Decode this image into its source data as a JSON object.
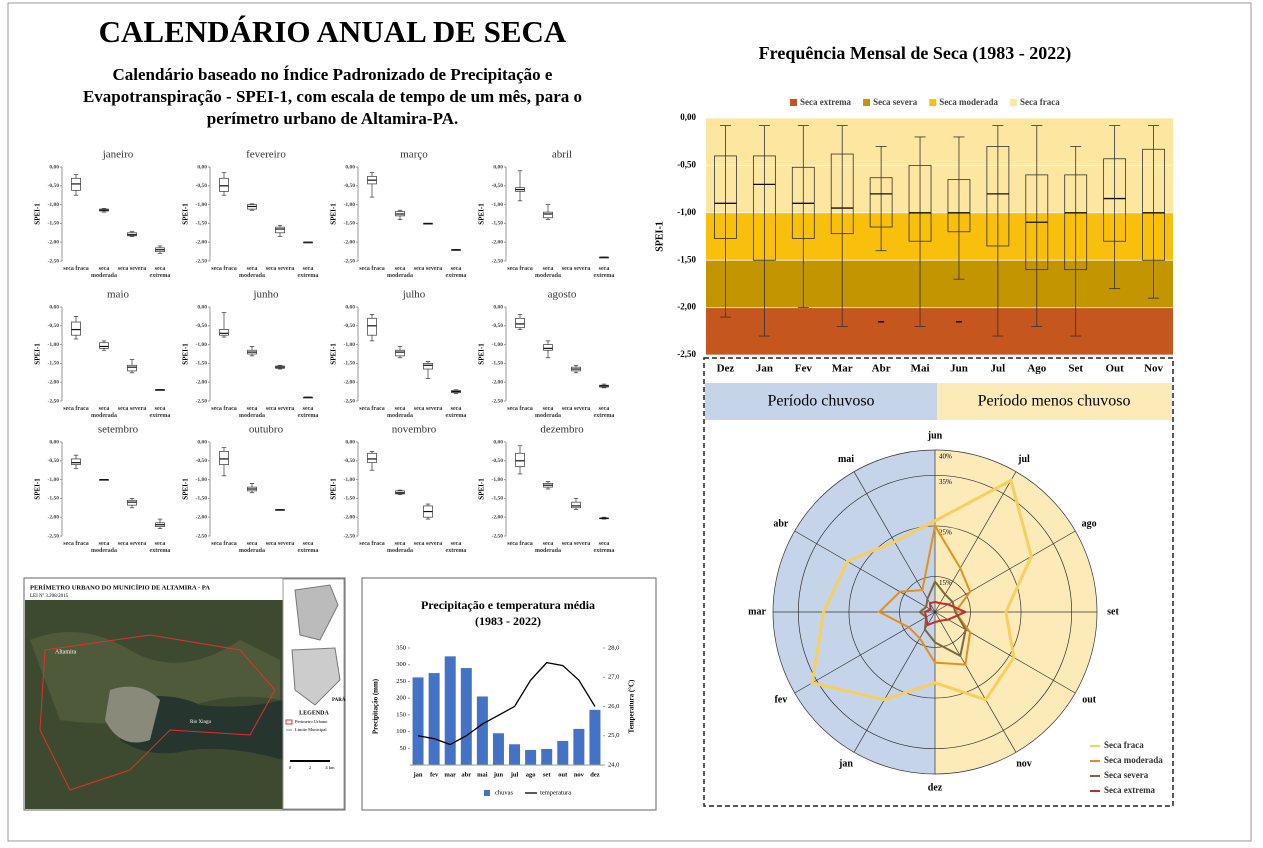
{
  "header": {
    "title": "CALENDÁRIO ANUAL DE SECA",
    "subtitle": "Calendário baseado no Índice Padronizado de Precipitação e Evapotranspiração - SPEI-1, com escala de tempo de um mês, para o perímetro urbano de Altamira-PA."
  },
  "chart_data": [
    {
      "type": "box",
      "ylabel": "SPEI-1",
      "ylim": [
        -2.5,
        0
      ],
      "yticks": [
        {
          "value": 0,
          "label": "0,00"
        },
        {
          "value": -0.5,
          "label": "-0,50"
        },
        {
          "value": -1,
          "label": "-1,00"
        },
        {
          "value": -1.5,
          "label": "-1,50"
        },
        {
          "value": -2,
          "label": "-2,00"
        },
        {
          "value": -2.5,
          "label": "-2,50"
        }
      ],
      "categories": [
        "seca fraca",
        "seca moderada",
        "seca severa",
        "seca extrema"
      ],
      "panels": [
        {
          "title": "janeiro",
          "boxes": [
            [
              -0.75,
              -0.62,
              -0.45,
              -0.3,
              -0.2
            ],
            [
              -1.2,
              -1.17,
              -1.15,
              -1.12,
              -1.1
            ],
            [
              -1.85,
              -1.83,
              -1.8,
              -1.75,
              -1.72
            ],
            [
              -2.3,
              -2.25,
              -2.2,
              -2.15,
              -2.1
            ]
          ]
        },
        {
          "title": "fevereiro",
          "boxes": [
            [
              -0.75,
              -0.65,
              -0.5,
              -0.3,
              -0.15
            ],
            [
              -1.15,
              -1.12,
              -1.05,
              -1.0,
              -0.98
            ],
            [
              -1.85,
              -1.75,
              -1.65,
              -1.6,
              -1.55
            ],
            [
              -2.0,
              -2.0,
              -2.0,
              -2.0,
              -2.0
            ]
          ]
        },
        {
          "title": "março",
          "boxes": [
            [
              -0.8,
              -0.45,
              -0.35,
              -0.25,
              -0.15
            ],
            [
              -1.4,
              -1.3,
              -1.25,
              -1.18,
              -1.15
            ],
            [
              -1.5,
              -1.5,
              -1.5,
              -1.5,
              -1.5
            ],
            [
              -2.2,
              -2.2,
              -2.2,
              -2.2,
              -2.2
            ]
          ]
        },
        {
          "title": "abril",
          "boxes": [
            [
              -0.9,
              -0.65,
              -0.6,
              -0.55,
              -0.1
            ],
            [
              -1.4,
              -1.35,
              -1.25,
              -1.2,
              -1.0
            ],
            null,
            [
              -2.4,
              -2.4,
              -2.4,
              -2.4,
              -2.4
            ]
          ]
        },
        {
          "title": "maio",
          "boxes": [
            [
              -0.85,
              -0.75,
              -0.6,
              -0.4,
              -0.25
            ],
            [
              -1.15,
              -1.1,
              -1.05,
              -0.95,
              -0.9
            ],
            [
              -1.75,
              -1.7,
              -1.6,
              -1.55,
              -1.4
            ],
            [
              -2.2,
              -2.2,
              -2.2,
              -2.2,
              -2.2
            ]
          ]
        },
        {
          "title": "junho",
          "boxes": [
            [
              -0.8,
              -0.75,
              -0.7,
              -0.6,
              -0.15
            ],
            [
              -1.3,
              -1.25,
              -1.2,
              -1.15,
              -1.05
            ],
            [
              -1.65,
              -1.63,
              -1.6,
              -1.57,
              -1.55
            ],
            [
              -2.4,
              -2.4,
              -2.4,
              -2.4,
              -2.4
            ]
          ]
        },
        {
          "title": "julho",
          "boxes": [
            [
              -0.9,
              -0.75,
              -0.5,
              -0.3,
              -0.2
            ],
            [
              -1.35,
              -1.3,
              -1.2,
              -1.15,
              -1.05
            ],
            [
              -1.9,
              -1.65,
              -1.55,
              -1.5,
              -1.45
            ],
            [
              -2.3,
              -2.28,
              -2.25,
              -2.22,
              -2.2
            ]
          ]
        },
        {
          "title": "agosto",
          "boxes": [
            [
              -0.6,
              -0.55,
              -0.45,
              -0.3,
              -0.2
            ],
            [
              -1.35,
              -1.15,
              -1.1,
              -1.0,
              -0.9
            ],
            [
              -1.75,
              -1.7,
              -1.65,
              -1.6,
              -1.55
            ],
            [
              -2.15,
              -2.13,
              -2.1,
              -2.08,
              -2.05
            ]
          ]
        },
        {
          "title": "setembro",
          "boxes": [
            [
              -0.7,
              -0.6,
              -0.55,
              -0.45,
              -0.35
            ],
            [
              -1.0,
              -1.0,
              -1.0,
              -1.0,
              -1.0
            ],
            [
              -1.75,
              -1.68,
              -1.6,
              -1.55,
              -1.5
            ],
            [
              -2.3,
              -2.25,
              -2.2,
              -2.15,
              -2.05
            ]
          ]
        },
        {
          "title": "outubro",
          "boxes": [
            [
              -0.9,
              -0.6,
              -0.45,
              -0.25,
              -0.15
            ],
            [
              -1.35,
              -1.3,
              -1.25,
              -1.2,
              -1.1
            ],
            [
              -1.8,
              -1.8,
              -1.8,
              -1.8,
              -1.8
            ],
            null
          ]
        },
        {
          "title": "novembro",
          "boxes": [
            [
              -0.75,
              -0.55,
              -0.45,
              -0.3,
              -0.25
            ],
            [
              -1.4,
              -1.38,
              -1.35,
              -1.3,
              -1.28
            ],
            [
              -2.05,
              -2.0,
              -1.85,
              -1.7,
              -1.65
            ],
            null
          ]
        },
        {
          "title": "dezembro",
          "boxes": [
            [
              -0.85,
              -0.65,
              -0.5,
              -0.3,
              -0.1
            ],
            [
              -1.25,
              -1.2,
              -1.15,
              -1.1,
              -1.05
            ],
            [
              -1.8,
              -1.75,
              -1.7,
              -1.6,
              -1.5
            ],
            [
              -2.05,
              -2.04,
              -2.03,
              -2.02,
              -2.0
            ]
          ]
        }
      ]
    },
    {
      "type": "box",
      "title": "Frequência Mensal de Seca (1983 - 2022)",
      "ylabel": "SPEI-1",
      "ylim": [
        -2.5,
        0
      ],
      "yticks": [
        {
          "value": 0,
          "label": "0,00"
        },
        {
          "value": -0.5,
          "label": "-0,50"
        },
        {
          "value": -1,
          "label": "-1,00"
        },
        {
          "value": -1.5,
          "label": "-1,50"
        },
        {
          "value": -2,
          "label": "-2,00"
        },
        {
          "value": -2.5,
          "label": "-2,50"
        }
      ],
      "categories": [
        "Dez",
        "Jan",
        "Fev",
        "Mar",
        "Abr",
        "Mai",
        "Jun",
        "Jul",
        "Ago",
        "Set",
        "Out",
        "Nov"
      ],
      "boxes": [
        [
          -2.1,
          -1.27,
          -0.9,
          -0.4,
          -0.08
        ],
        [
          -2.3,
          -1.5,
          -0.7,
          -0.4,
          -0.08
        ],
        [
          -2.0,
          -1.27,
          -0.9,
          -0.52,
          -0.08
        ],
        [
          -2.2,
          -1.22,
          -0.95,
          -0.38,
          -0.08
        ],
        [
          -1.4,
          -1.15,
          -0.8,
          -0.63,
          -0.3
        ],
        [
          -2.2,
          -1.3,
          -1.0,
          -0.5,
          -0.2
        ],
        [
          -1.7,
          -1.2,
          -1.0,
          -0.65,
          -0.2
        ],
        [
          -2.3,
          -1.35,
          -0.8,
          -0.3,
          -0.08
        ],
        [
          -2.2,
          -1.6,
          -1.1,
          -0.6,
          -0.08
        ],
        [
          -2.3,
          -1.6,
          -1.0,
          -0.6,
          -0.3
        ],
        [
          -1.8,
          -1.3,
          -0.85,
          -0.43,
          -0.08
        ],
        [
          -1.9,
          -1.5,
          -1.0,
          -0.33,
          -0.08
        ]
      ],
      "outliers": [
        null,
        null,
        null,
        null,
        -2.15,
        null,
        -2.15,
        null,
        null,
        null,
        null,
        null
      ],
      "bands": [
        {
          "name": "Seca extrema",
          "color": "#c5561d",
          "range": [
            -2.5,
            -2
          ]
        },
        {
          "name": "Seca severa",
          "color": "#c39500",
          "range": [
            -2,
            -1.5
          ]
        },
        {
          "name": "Seca moderada",
          "color": "#f8bf0c",
          "range": [
            -1.5,
            -1
          ]
        },
        {
          "name": "Seca fraca",
          "color": "#fde6a0",
          "range": [
            -1,
            0
          ]
        }
      ]
    },
    {
      "type": "bar",
      "title": "Precipitação e temperatura média",
      "subtitle": "(1983 - 2022)",
      "ylabel": "Precipitação (mm)",
      "y2label": "Temperatura (°C)",
      "categories": [
        "jan",
        "fev",
        "mar",
        "abr",
        "mai",
        "jun",
        "jul",
        "ago",
        "set",
        "out",
        "nov",
        "dez"
      ],
      "ylim": [
        0,
        350
      ],
      "yticks": [
        50,
        100,
        150,
        200,
        250,
        300,
        350
      ],
      "y2lim": [
        24,
        28
      ],
      "y2ticks": [
        {
          "value": 24,
          "label": "24,0"
        },
        {
          "value": 25,
          "label": "25,0"
        },
        {
          "value": 26,
          "label": "26,0"
        },
        {
          "value": 27,
          "label": "27,0"
        },
        {
          "value": 28,
          "label": "28,0"
        }
      ],
      "series": [
        {
          "name": "chuvas",
          "type": "bar",
          "color": "#4472c4",
          "values": [
            262,
            275,
            325,
            290,
            205,
            95,
            62,
            45,
            48,
            72,
            108,
            165
          ]
        },
        {
          "name": "temperatura",
          "type": "line",
          "axis": "y2",
          "color": "#000000",
          "values": [
            25.0,
            24.9,
            24.7,
            25.0,
            25.4,
            25.7,
            26.0,
            26.9,
            27.5,
            27.4,
            26.9,
            26.0
          ]
        }
      ]
    },
    {
      "type": "radar",
      "categories": [
        "jun",
        "jul",
        "ago",
        "set",
        "out",
        "nov",
        "dez",
        "jan",
        "fev",
        "mar",
        "abr",
        "mai"
      ],
      "rlim": [
        8,
        40
      ],
      "rticks": [
        {
          "value": 15,
          "label": "15%"
        },
        {
          "value": 25,
          "label": "25%"
        },
        {
          "value": 35,
          "label": "35%"
        },
        {
          "value": 40,
          "label": "40%"
        }
      ],
      "series": [
        {
          "name": "Seca fraca",
          "color": "#f6cf5c",
          "values": [
            26,
            38,
            30,
            22,
            26,
            28,
            22,
            28,
            36,
            30,
            28,
            24
          ]
        },
        {
          "name": "Seca moderada",
          "color": "#e58f1c",
          "values": [
            25,
            18,
            16,
            12,
            16,
            20,
            18,
            14,
            14,
            19,
            16,
            13
          ]
        },
        {
          "name": "Seca severa",
          "color": "#7a6a3a",
          "values": [
            14,
            12,
            12,
            12,
            15,
            18,
            14,
            12,
            10,
            11,
            10,
            11
          ]
        },
        {
          "name": "Seca extrema",
          "color": "#c0302a",
          "values": [
            10,
            10,
            11,
            14,
            11,
            10,
            10,
            11,
            10,
            10,
            9,
            10
          ]
        }
      ]
    }
  ],
  "periods": [
    "Período chuvoso",
    "Período menos chuvoso"
  ],
  "map": {
    "title": "PERÍMETRO URBANO DO MUNICÍPIO DE ALTAMIRA - PA",
    "law": "LEI Nº 3.208/2015",
    "legend_title": "LEGENDA",
    "legend_items": [
      "Perímetro Urbano",
      "Limite Municipal"
    ],
    "labels": [
      "Altamira",
      "Rio Xingu",
      "PARÁ"
    ],
    "scale": [
      "0",
      "2",
      "4 km"
    ]
  }
}
